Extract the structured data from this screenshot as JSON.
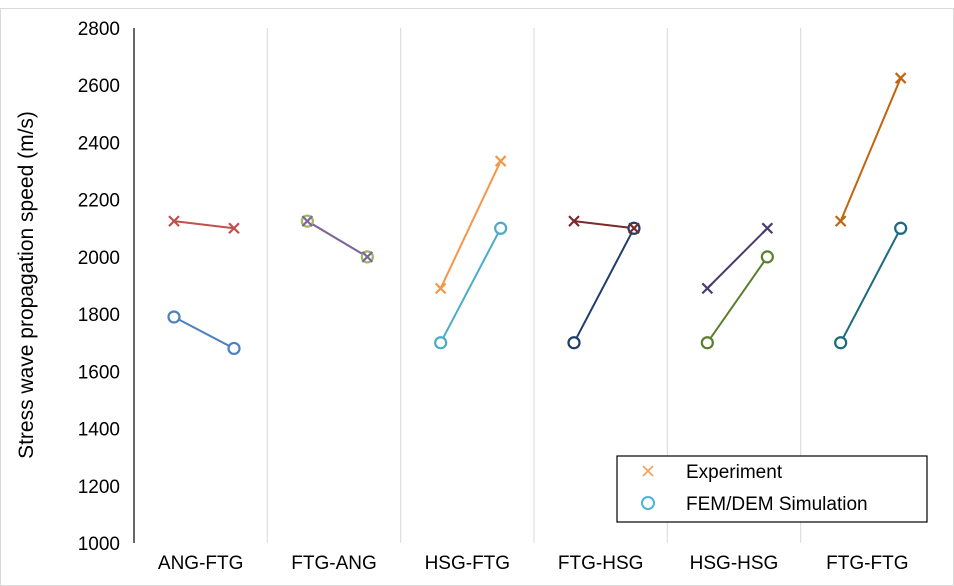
{
  "chart_data": {
    "type": "line",
    "ylabel": "Stress wave propagation speed (m/s)",
    "ylim": [
      1000,
      2800
    ],
    "ytick_step": 200,
    "yticks": [
      "1000",
      "1200",
      "1400",
      "1600",
      "1800",
      "2000",
      "2200",
      "2400",
      "2600",
      "2800"
    ],
    "categories": [
      "ANG-FTG",
      "FTG-ANG",
      "HSG-FTG",
      "FTG-HSG",
      "HSG-HSG",
      "FTG-FTG"
    ],
    "grid": "vertical separators between groups",
    "legend": {
      "position": "bottom-right",
      "entries": [
        {
          "label": "Experiment",
          "marker": "x",
          "color": "#f4a460"
        },
        {
          "label": "FEM/DEM Simulation",
          "marker": "o",
          "color": "#4bb4d6"
        }
      ]
    },
    "groups": [
      {
        "category": "ANG-FTG",
        "experiment": [
          2125,
          2100
        ],
        "simulation": [
          1790,
          1680
        ],
        "exp_color": "#c0504d",
        "sim_color": "#4f81bd"
      },
      {
        "category": "FTG-ANG",
        "experiment": [
          2125,
          2000
        ],
        "simulation": [
          2125,
          2000
        ],
        "exp_color": "#8064a2",
        "sim_color": "#9bbb59"
      },
      {
        "category": "HSG-FTG",
        "experiment": [
          1890,
          2335
        ],
        "simulation": [
          1700,
          2100
        ],
        "exp_color": "#f79646",
        "sim_color": "#4bacc6"
      },
      {
        "category": "FTG-HSG",
        "experiment": [
          2125,
          2100
        ],
        "simulation": [
          1700,
          2100
        ],
        "exp_color": "#7b2a2a",
        "sim_color": "#1f3d6e"
      },
      {
        "category": "HSG-HSG",
        "experiment": [
          1890,
          2100
        ],
        "simulation": [
          1700,
          2000
        ],
        "exp_color": "#4b3a6e",
        "sim_color": "#5b7f2e"
      },
      {
        "category": "FTG-FTG",
        "experiment": [
          2125,
          2625
        ],
        "simulation": [
          1700,
          2100
        ],
        "exp_color": "#c0650f",
        "sim_color": "#1b6a7e"
      }
    ]
  }
}
